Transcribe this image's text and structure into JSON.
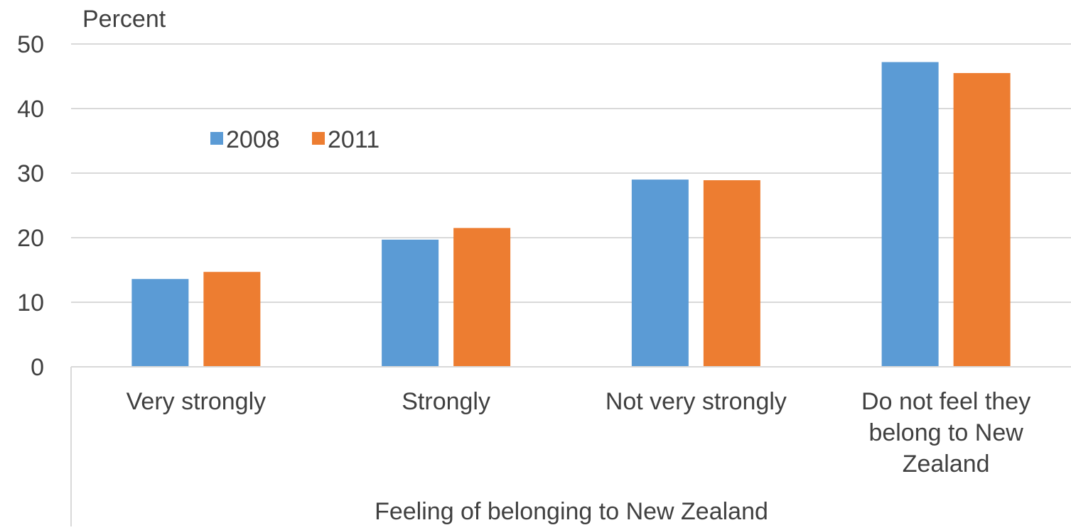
{
  "chart_data": {
    "type": "bar",
    "ylabel": "Percent",
    "xlabel": "Feeling of belonging to New Zealand",
    "categories": [
      "Very strongly",
      "Strongly",
      "Not very strongly",
      "Do not feel they belong to New Zealand"
    ],
    "category_lines": [
      [
        "Very strongly"
      ],
      [
        "Strongly"
      ],
      [
        "Not very strongly"
      ],
      [
        "Do not feel they",
        "belong to New",
        "Zealand"
      ]
    ],
    "series": [
      {
        "name": "2008",
        "color": "#5B9BD5",
        "values": [
          13.6,
          19.7,
          29.0,
          47.2
        ]
      },
      {
        "name": "2011",
        "color": "#ED7D31",
        "values": [
          14.7,
          21.5,
          28.9,
          45.5
        ]
      }
    ],
    "ylim": [
      0,
      50
    ],
    "yticks": [
      0,
      10,
      20,
      30,
      40,
      50
    ],
    "grid": true,
    "legend": "top-left"
  }
}
